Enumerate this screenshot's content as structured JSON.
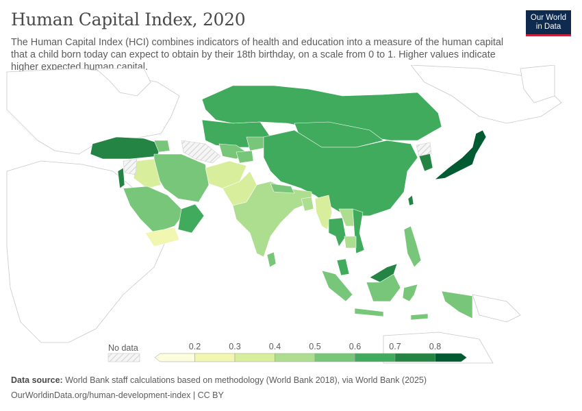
{
  "title": "Human Capital Index, 2020",
  "subtitle": "The Human Capital Index (HCI) combines indicators of health and education into a measure of the human capital that a child born today can expect to obtain by their 18th birthday, on a scale from 0 to 1. Higher values indicate higher expected human capital.",
  "logo": {
    "line1": "Our World",
    "line2": "in Data"
  },
  "legend": {
    "no_data_label": "No data",
    "ticks": [
      "0.2",
      "0.3",
      "0.4",
      "0.5",
      "0.6",
      "0.7",
      "0.8"
    ],
    "colors": [
      "#fbfddc",
      "#f1f7b0",
      "#d9ee9c",
      "#addd8e",
      "#78c679",
      "#41ab5d",
      "#238443",
      "#005a32"
    ]
  },
  "footer": {
    "source_label": "Data source:",
    "source_text": "World Bank staff calculations based on methodology (World Bank 2018), via World Bank (2025)",
    "url_text": "OurWorldinData.org/human-development-index | CC BY"
  },
  "map_data": {
    "region": "Asia",
    "no_data_color": "#eeeeee",
    "outline_color": "#c8c8c8"
  }
}
